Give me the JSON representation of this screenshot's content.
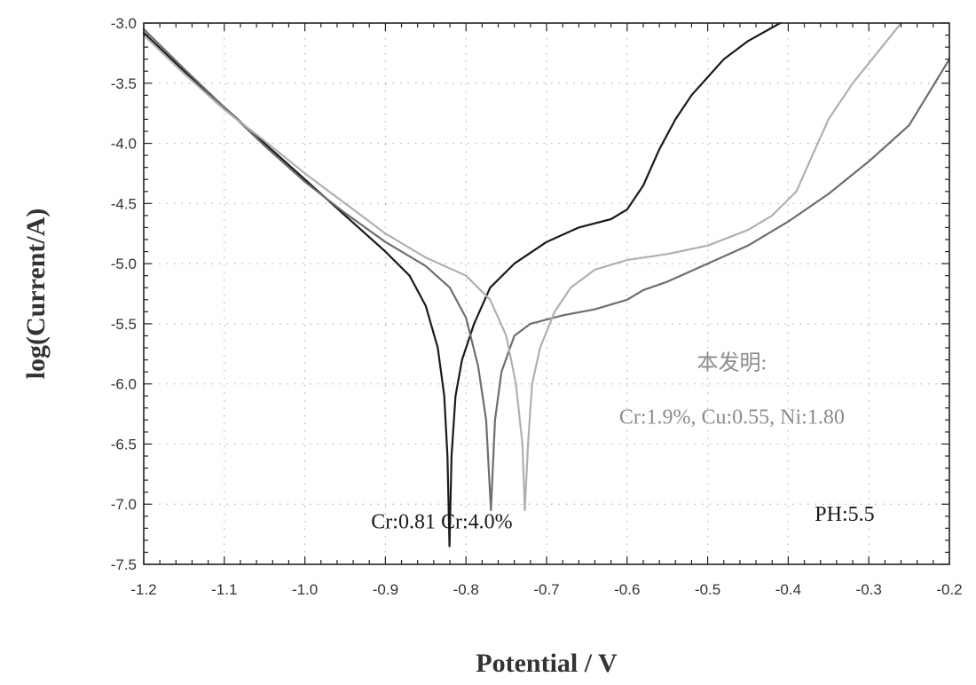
{
  "chart_data": {
    "type": "line",
    "title": "",
    "xlabel": "Potential / V",
    "ylabel": "log(Current/A)",
    "xlim": [
      -1.2,
      -0.2
    ],
    "ylim": [
      -7.5,
      -3.0
    ],
    "x_ticks": [
      -1.2,
      -1.1,
      -1.0,
      -0.9,
      -0.8,
      -0.7,
      -0.6,
      -0.5,
      -0.4,
      -0.3,
      -0.2
    ],
    "x_tick_labels": [
      "-1.2",
      "-1.1",
      "-1.0",
      "-0.9",
      "-0.8",
      "-0.7",
      "-0.6",
      "-0.5",
      "-0.4",
      "-0.3",
      "-0.2"
    ],
    "y_ticks": [
      -3.0,
      -3.5,
      -4.0,
      -4.5,
      -5.0,
      -5.5,
      -6.0,
      -6.5,
      -7.0,
      -7.5
    ],
    "y_tick_labels": [
      "-3.0",
      "-3.5",
      "-4.0",
      "-4.5",
      "-5.0",
      "-5.5",
      "-6.0",
      "-6.5",
      "-7.0",
      "-7.5"
    ],
    "grid": true,
    "series": [
      {
        "color": "#1a1a1a",
        "points": [
          [
            -1.2,
            -3.08
          ],
          [
            -1.15,
            -3.4
          ],
          [
            -1.1,
            -3.7
          ],
          [
            -1.05,
            -4.0
          ],
          [
            -1.0,
            -4.3
          ],
          [
            -0.95,
            -4.6
          ],
          [
            -0.9,
            -4.9
          ],
          [
            -0.87,
            -5.1
          ],
          [
            -0.85,
            -5.35
          ],
          [
            -0.835,
            -5.7
          ],
          [
            -0.827,
            -6.1
          ],
          [
            -0.823,
            -6.6
          ],
          [
            -0.8205,
            -7.35
          ],
          [
            -0.818,
            -6.6
          ],
          [
            -0.813,
            -6.1
          ],
          [
            -0.805,
            -5.8
          ],
          [
            -0.79,
            -5.5
          ],
          [
            -0.77,
            -5.2
          ],
          [
            -0.74,
            -5.0
          ],
          [
            -0.7,
            -4.82
          ],
          [
            -0.66,
            -4.7
          ],
          [
            -0.62,
            -4.63
          ],
          [
            -0.6,
            -4.55
          ],
          [
            -0.58,
            -4.35
          ],
          [
            -0.56,
            -4.05
          ],
          [
            -0.54,
            -3.8
          ],
          [
            -0.52,
            -3.6
          ],
          [
            -0.5,
            -3.45
          ],
          [
            -0.48,
            -3.3
          ],
          [
            -0.45,
            -3.15
          ],
          [
            -0.41,
            -3.0
          ]
        ]
      },
      {
        "color": "#6e6e6e",
        "points": [
          [
            -1.2,
            -3.05
          ],
          [
            -1.15,
            -3.38
          ],
          [
            -1.1,
            -3.7
          ],
          [
            -1.05,
            -4.02
          ],
          [
            -1.0,
            -4.32
          ],
          [
            -0.95,
            -4.58
          ],
          [
            -0.9,
            -4.82
          ],
          [
            -0.85,
            -5.02
          ],
          [
            -0.82,
            -5.2
          ],
          [
            -0.8,
            -5.45
          ],
          [
            -0.785,
            -5.85
          ],
          [
            -0.775,
            -6.3
          ],
          [
            -0.769,
            -7.05
          ],
          [
            -0.764,
            -6.3
          ],
          [
            -0.756,
            -5.9
          ],
          [
            -0.74,
            -5.6
          ],
          [
            -0.72,
            -5.5
          ],
          [
            -0.68,
            -5.43
          ],
          [
            -0.64,
            -5.38
          ],
          [
            -0.6,
            -5.3
          ],
          [
            -0.58,
            -5.22
          ],
          [
            -0.55,
            -5.15
          ],
          [
            -0.5,
            -5.0
          ],
          [
            -0.45,
            -4.85
          ],
          [
            -0.4,
            -4.65
          ],
          [
            -0.35,
            -4.42
          ],
          [
            -0.3,
            -4.15
          ],
          [
            -0.25,
            -3.85
          ],
          [
            -0.2,
            -3.3
          ]
        ]
      },
      {
        "color": "#b0b0b0",
        "points": [
          [
            -1.2,
            -3.1
          ],
          [
            -1.15,
            -3.42
          ],
          [
            -1.1,
            -3.72
          ],
          [
            -1.05,
            -3.98
          ],
          [
            -1.0,
            -4.25
          ],
          [
            -0.95,
            -4.5
          ],
          [
            -0.9,
            -4.75
          ],
          [
            -0.85,
            -4.95
          ],
          [
            -0.8,
            -5.1
          ],
          [
            -0.77,
            -5.3
          ],
          [
            -0.75,
            -5.6
          ],
          [
            -0.738,
            -6.0
          ],
          [
            -0.73,
            -6.5
          ],
          [
            -0.727,
            -7.05
          ],
          [
            -0.723,
            -6.5
          ],
          [
            -0.718,
            -6.0
          ],
          [
            -0.708,
            -5.7
          ],
          [
            -0.69,
            -5.4
          ],
          [
            -0.67,
            -5.2
          ],
          [
            -0.64,
            -5.05
          ],
          [
            -0.6,
            -4.97
          ],
          [
            -0.55,
            -4.92
          ],
          [
            -0.5,
            -4.85
          ],
          [
            -0.45,
            -4.72
          ],
          [
            -0.42,
            -4.6
          ],
          [
            -0.39,
            -4.4
          ],
          [
            -0.37,
            -4.1
          ],
          [
            -0.35,
            -3.8
          ],
          [
            -0.32,
            -3.5
          ],
          [
            -0.29,
            -3.25
          ],
          [
            -0.26,
            -3.0
          ]
        ]
      }
    ],
    "annotations": [
      {
        "text": "本发明:",
        "x": -0.47,
        "y": -5.88,
        "color": "#8c8c8c"
      },
      {
        "text": "Cr:1.9%, Cu:0.55, Ni:1.80",
        "x": -0.47,
        "y": -6.33,
        "color": "#8c8c8c"
      },
      {
        "text": "Cr:0.81 Cr:4.0%",
        "x": -0.83,
        "y": -7.2,
        "color": "#1a1a1a"
      },
      {
        "text": "PH:5.5",
        "x": -0.33,
        "y": -7.14,
        "color": "#1a1a1a"
      }
    ]
  }
}
